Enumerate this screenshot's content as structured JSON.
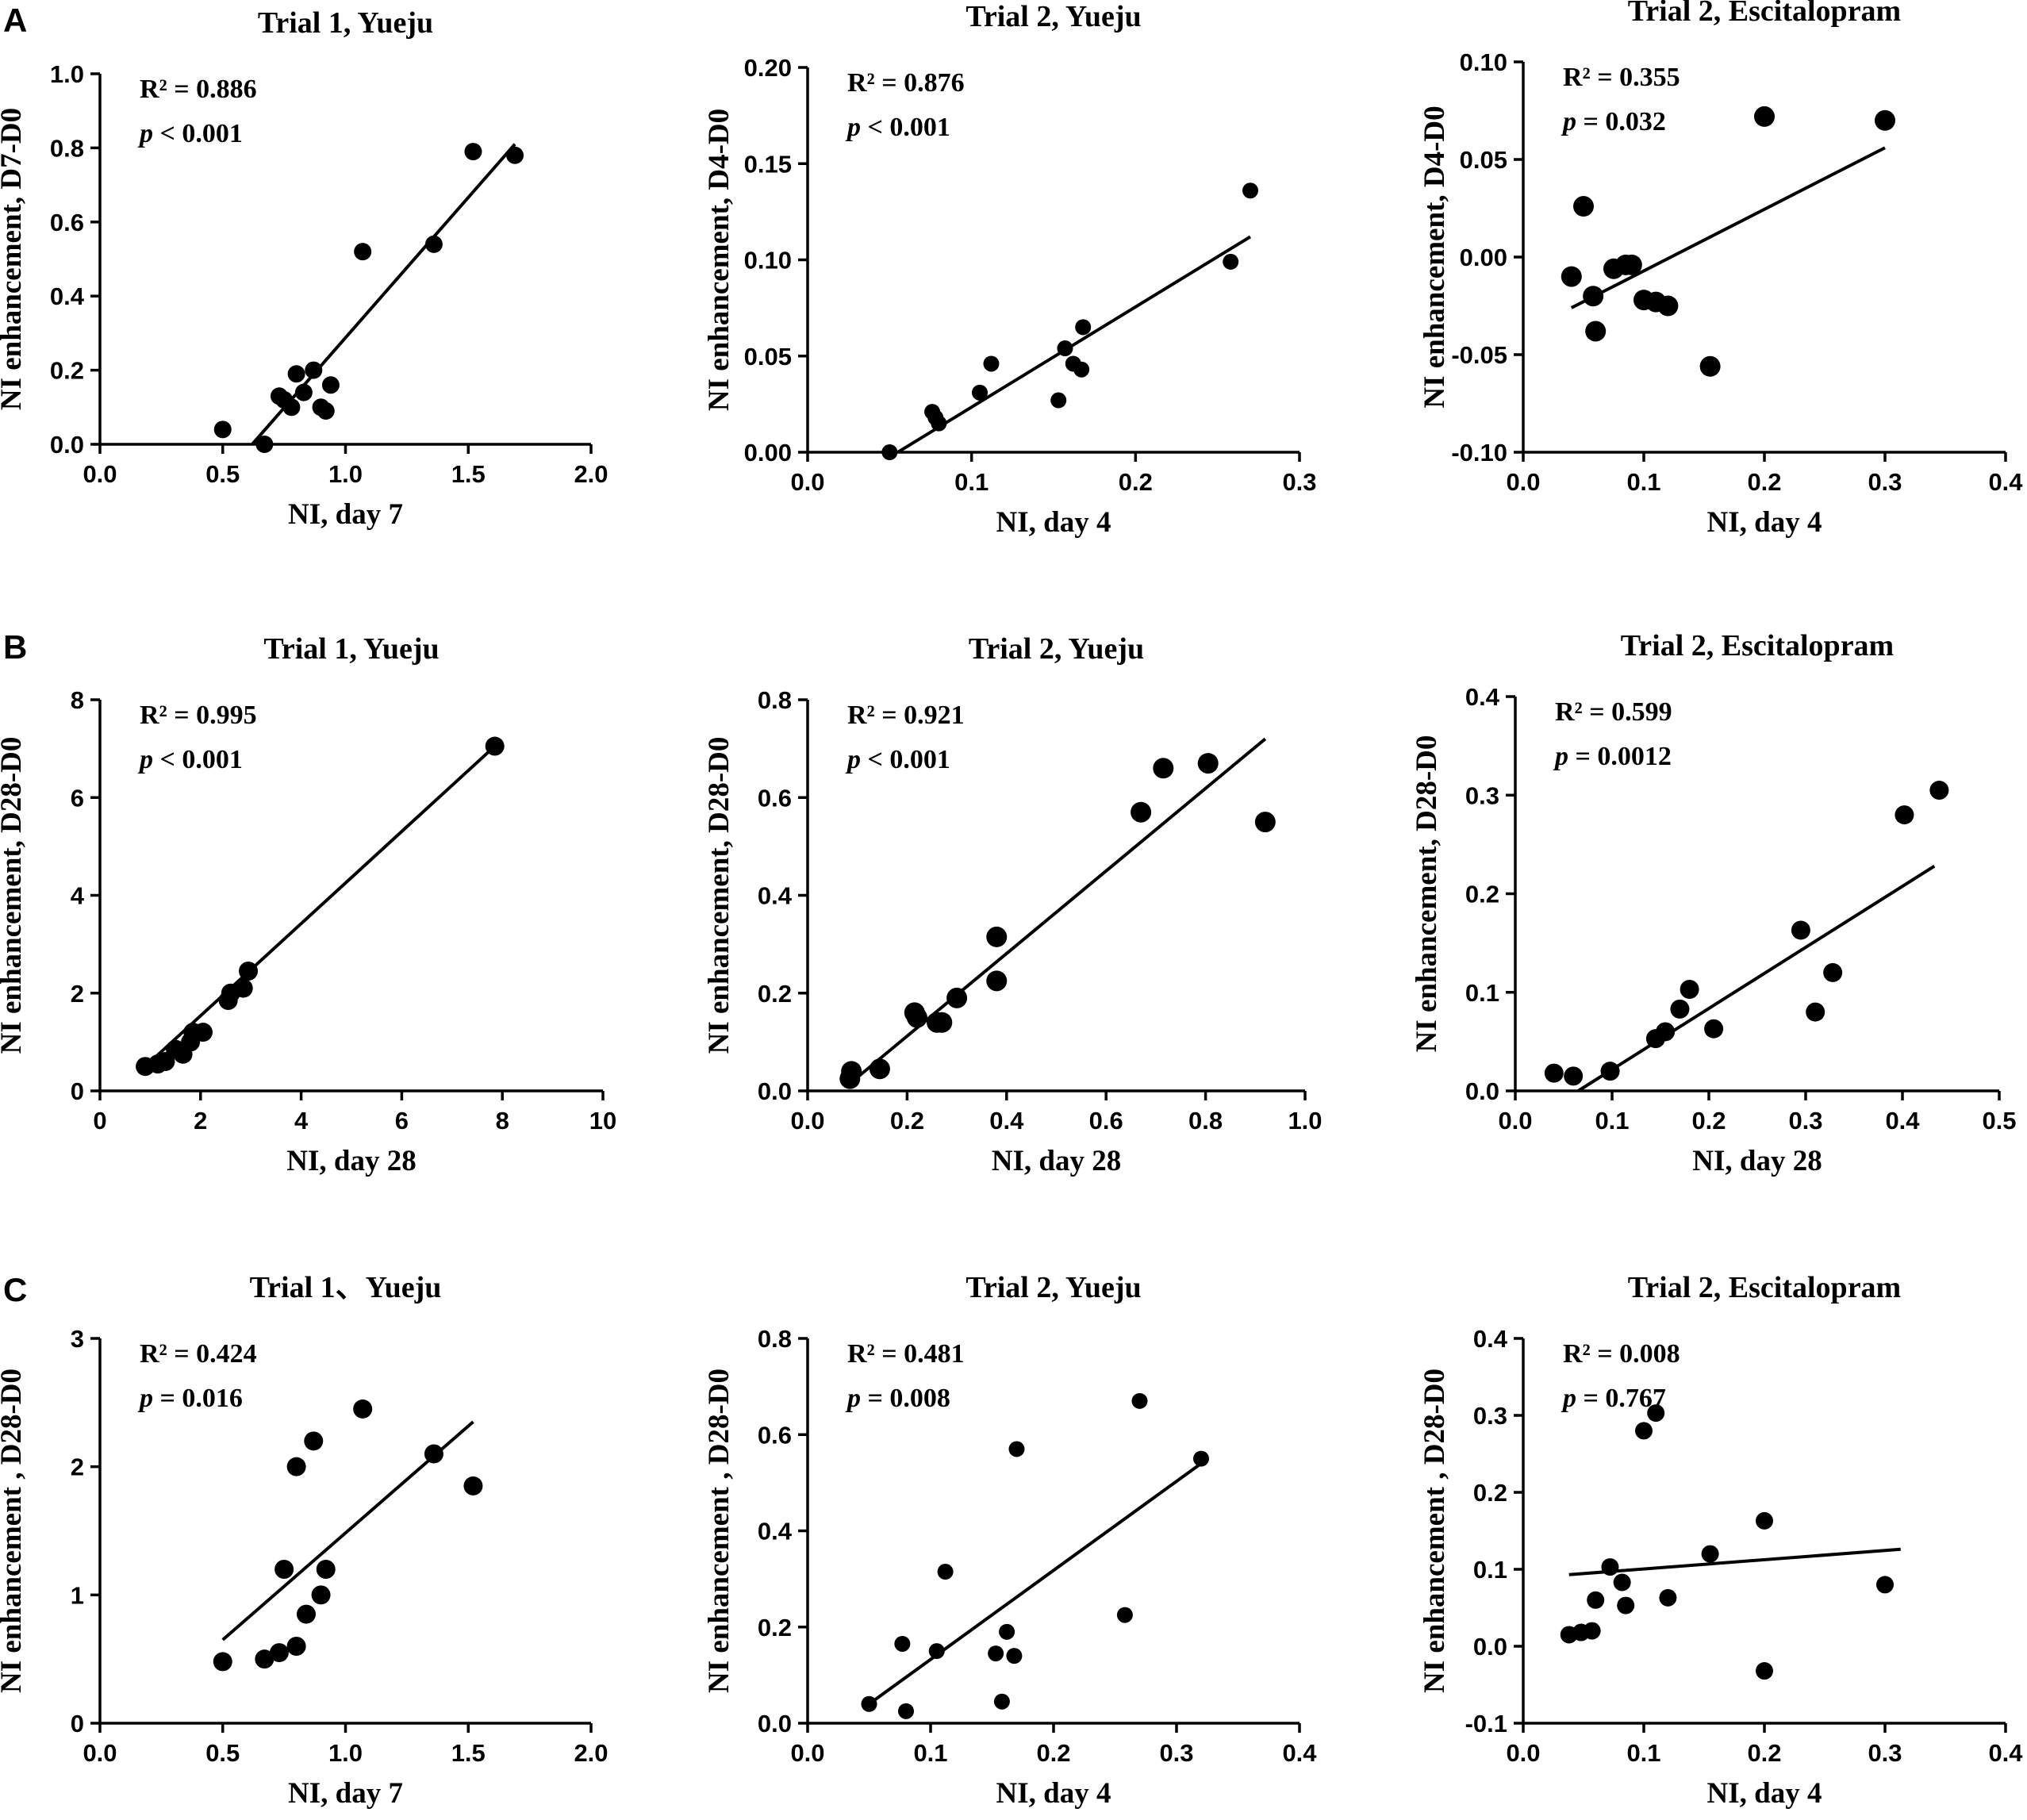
{
  "panel_labels": [
    "A",
    "B",
    "C"
  ],
  "chart_data": [
    {
      "type": "scatter",
      "row": "A",
      "title": "Trial 1, Yueju",
      "xlabel": "NI, day 7",
      "ylabel": "NI enhancement, D7-D0",
      "xlim": [
        0,
        2.0
      ],
      "ylim": [
        0,
        1.0
      ],
      "xticks": [
        "0.0",
        "0.5",
        "1.0",
        "1.5",
        "2.0"
      ],
      "yticks": [
        "0.0",
        "0.2",
        "0.4",
        "0.6",
        "0.8",
        "1.0"
      ],
      "r2_text": "R² = 0.886",
      "p_label": "p",
      "p_rest": " < 0.001",
      "x": [
        0.5,
        0.67,
        0.73,
        0.75,
        0.78,
        0.8,
        0.83,
        0.87,
        0.9,
        0.92,
        0.94,
        1.07,
        1.36,
        1.52,
        1.69
      ],
      "y": [
        0.04,
        0.0,
        0.13,
        0.12,
        0.1,
        0.19,
        0.14,
        0.2,
        0.1,
        0.09,
        0.16,
        0.52,
        0.54,
        0.79,
        0.78
      ],
      "fit": {
        "x": [
          0.62,
          1.69
        ],
        "y": [
          0.0,
          0.81
        ]
      }
    },
    {
      "type": "scatter",
      "row": "A",
      "title": "Trial 2, Yueju",
      "xlabel": "NI, day 4",
      "ylabel": "NI enhancement, D4-D0",
      "xlim": [
        0,
        0.3
      ],
      "ylim": [
        0,
        0.2
      ],
      "xticks": [
        "0.0",
        "0.1",
        "0.2",
        "0.3"
      ],
      "yticks": [
        "0.00",
        "0.05",
        "0.10",
        "0.15",
        "0.20"
      ],
      "r2_text": "R² = 0.876",
      "p_label": "p",
      "p_rest": " < 0.001",
      "x": [
        0.05,
        0.076,
        0.078,
        0.08,
        0.105,
        0.112,
        0.153,
        0.157,
        0.162,
        0.167,
        0.168,
        0.258,
        0.27
      ],
      "y": [
        0.0,
        0.021,
        0.018,
        0.015,
        0.031,
        0.046,
        0.027,
        0.054,
        0.046,
        0.043,
        0.065,
        0.099,
        0.136
      ],
      "fit": {
        "x": [
          0.055,
          0.27
        ],
        "y": [
          0.0,
          0.112
        ]
      }
    },
    {
      "type": "scatter",
      "row": "A",
      "title": "Trial 2, Escitalopram",
      "xlabel": "NI, day 4",
      "ylabel": "NI enhancement, D4-D0",
      "xlim": [
        0,
        0.4
      ],
      "ylim": [
        -0.1,
        0.1
      ],
      "xticks": [
        "0.0",
        "0.1",
        "0.2",
        "0.3",
        "0.4"
      ],
      "yticks": [
        "-0.10",
        "-0.05",
        "0.00",
        "0.05",
        "0.10"
      ],
      "r2_text": "R² = 0.355",
      "p_label": "p",
      "p_rest": " = 0.032",
      "x": [
        0.04,
        0.05,
        0.058,
        0.06,
        0.075,
        0.085,
        0.09,
        0.1,
        0.11,
        0.12,
        0.155,
        0.2,
        0.3
      ],
      "y": [
        -0.01,
        0.026,
        -0.02,
        -0.038,
        -0.006,
        -0.004,
        -0.004,
        -0.022,
        -0.023,
        -0.025,
        -0.056,
        0.072,
        0.07
      ],
      "fit": {
        "x": [
          0.04,
          0.3
        ],
        "y": [
          -0.026,
          0.056
        ]
      }
    },
    {
      "type": "scatter",
      "row": "B",
      "title": "Trial 1, Yueju",
      "xlabel": "NI, day 28",
      "ylabel": "NI enhancement, D28-D0",
      "xlim": [
        0,
        10
      ],
      "ylim": [
        0,
        8
      ],
      "xticks": [
        "0",
        "2",
        "4",
        "6",
        "8",
        "10"
      ],
      "yticks": [
        "0",
        "2",
        "4",
        "6",
        "8"
      ],
      "r2_text": "R² = 0.995",
      "p_label": "p",
      "p_rest": " < 0.001",
      "x": [
        0.9,
        1.15,
        1.3,
        1.5,
        1.65,
        1.8,
        1.85,
        2.05,
        2.55,
        2.6,
        2.85,
        2.95,
        7.85
      ],
      "y": [
        0.5,
        0.55,
        0.6,
        0.85,
        0.75,
        1.0,
        1.2,
        1.2,
        1.85,
        2.0,
        2.1,
        2.45,
        7.05
      ],
      "fit": {
        "x": [
          0.9,
          7.85
        ],
        "y": [
          0.5,
          7.05
        ]
      }
    },
    {
      "type": "scatter",
      "row": "B",
      "title": "Trial 2, Yueju",
      "xlabel": "NI, day 28",
      "ylabel": "NI enhancement, D28-D0",
      "xlim": [
        0,
        1.0
      ],
      "ylim": [
        0,
        0.8
      ],
      "xticks": [
        "0.0",
        "0.2",
        "0.4",
        "0.6",
        "0.8",
        "1.0"
      ],
      "yticks": [
        "0.0",
        "0.2",
        "0.4",
        "0.6",
        "0.8"
      ],
      "r2_text": "R² = 0.921",
      "p_label": "p",
      "p_rest": " < 0.001",
      "x": [
        0.085,
        0.088,
        0.145,
        0.215,
        0.22,
        0.26,
        0.27,
        0.3,
        0.38,
        0.38,
        0.67,
        0.715,
        0.805,
        0.92
      ],
      "y": [
        0.025,
        0.04,
        0.045,
        0.16,
        0.15,
        0.14,
        0.14,
        0.19,
        0.315,
        0.225,
        0.57,
        0.66,
        0.67,
        0.55
      ],
      "fit": {
        "x": [
          0.085,
          0.92
        ],
        "y": [
          0.015,
          0.72
        ]
      }
    },
    {
      "type": "scatter",
      "row": "B",
      "title": "Trial 2, Escitalopram",
      "xlabel": "NI, day 28",
      "ylabel": "NI enhancement, D28-D0",
      "xlim": [
        0,
        0.5
      ],
      "ylim": [
        0,
        0.4
      ],
      "xticks": [
        "0.0",
        "0.1",
        "0.2",
        "0.3",
        "0.4",
        "0.5"
      ],
      "yticks": [
        "0.0",
        "0.1",
        "0.2",
        "0.3",
        "0.4"
      ],
      "r2_text": "R² = 0.599",
      "p_label": "p",
      "p_rest": " = 0.0012",
      "x": [
        0.04,
        0.06,
        0.098,
        0.145,
        0.155,
        0.17,
        0.18,
        0.205,
        0.295,
        0.31,
        0.328,
        0.402,
        0.438
      ],
      "y": [
        0.018,
        0.015,
        0.02,
        0.053,
        0.06,
        0.083,
        0.103,
        0.063,
        0.163,
        0.08,
        0.12,
        0.28,
        0.305
      ],
      "fit": {
        "x": [
          0.065,
          0.433
        ],
        "y": [
          0.0,
          0.228
        ]
      }
    },
    {
      "type": "scatter",
      "row": "C",
      "title": "Trial 1、Yueju",
      "xlabel": "NI, day 7",
      "ylabel": "NI enhancement , D28-D0",
      "xlim": [
        0,
        2.0
      ],
      "ylim": [
        0,
        3
      ],
      "xticks": [
        "0.0",
        "0.5",
        "1.0",
        "1.5",
        "2.0"
      ],
      "yticks": [
        "0",
        "1",
        "2",
        "3"
      ],
      "r2_text": "R² = 0.424",
      "p_label": "p",
      "p_rest": " = 0.016",
      "x": [
        0.5,
        0.67,
        0.73,
        0.75,
        0.8,
        0.8,
        0.84,
        0.87,
        0.9,
        0.92,
        1.07,
        1.36,
        1.52
      ],
      "y": [
        0.48,
        0.5,
        0.55,
        1.2,
        0.6,
        2.0,
        0.85,
        2.2,
        1.0,
        1.2,
        2.45,
        2.1,
        1.85
      ],
      "fit": {
        "x": [
          0.5,
          1.52
        ],
        "y": [
          0.65,
          2.35
        ]
      }
    },
    {
      "type": "scatter",
      "row": "C",
      "title": "Trial 2, Yueju",
      "xlabel": "NI, day 4",
      "ylabel": "NI enhancement , D28-D0",
      "xlim": [
        0,
        0.4
      ],
      "ylim": [
        0,
        0.8
      ],
      "xticks": [
        "0.0",
        "0.1",
        "0.2",
        "0.3",
        "0.4"
      ],
      "yticks": [
        "0.0",
        "0.2",
        "0.4",
        "0.6",
        "0.8"
      ],
      "r2_text": "R² = 0.481",
      "p_label": "p",
      "p_rest": " = 0.008",
      "x": [
        0.05,
        0.077,
        0.08,
        0.105,
        0.112,
        0.153,
        0.158,
        0.162,
        0.168,
        0.17,
        0.258,
        0.27,
        0.32
      ],
      "y": [
        0.04,
        0.165,
        0.025,
        0.15,
        0.315,
        0.145,
        0.045,
        0.19,
        0.14,
        0.57,
        0.225,
        0.67,
        0.55
      ],
      "fit": {
        "x": [
          0.05,
          0.32
        ],
        "y": [
          0.04,
          0.54
        ]
      }
    },
    {
      "type": "scatter",
      "row": "C",
      "title": "Trial 2, Escitalopram",
      "xlabel": "NI, day 4",
      "ylabel": "NI enhancement , D28-D0",
      "xlim": [
        0,
        0.4
      ],
      "ylim": [
        -0.1,
        0.4
      ],
      "xticks": [
        "0.0",
        "0.1",
        "0.2",
        "0.3",
        "0.4"
      ],
      "yticks": [
        "-0.1",
        "0.0",
        "0.1",
        "0.2",
        "0.3",
        "0.4"
      ],
      "r2_text": "R² = 0.008",
      "p_label": "p",
      "p_rest": " = 0.767",
      "x": [
        0.038,
        0.048,
        0.057,
        0.06,
        0.072,
        0.082,
        0.085,
        0.1,
        0.11,
        0.12,
        0.155,
        0.2,
        0.2,
        0.3
      ],
      "y": [
        0.015,
        0.018,
        0.02,
        0.06,
        0.103,
        0.083,
        0.053,
        0.28,
        0.303,
        0.063,
        0.12,
        0.163,
        -0.032,
        0.08
      ],
      "fit": {
        "x": [
          0.038,
          0.313
        ],
        "y": [
          0.093,
          0.126
        ]
      }
    }
  ]
}
